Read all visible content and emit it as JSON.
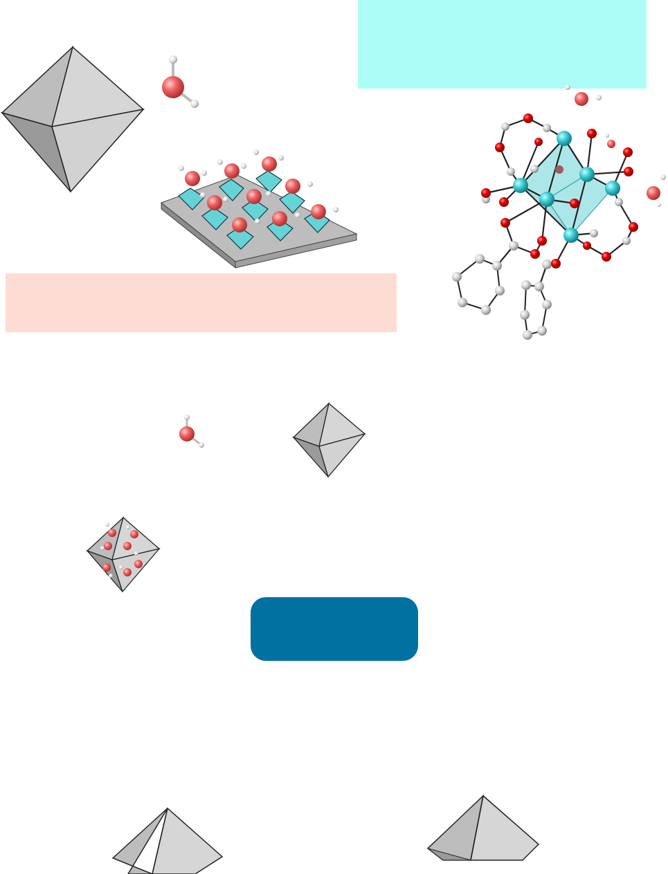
{
  "colors": {
    "cyan_panel": "#acfdf8",
    "peach_panel": "#fddcd3",
    "blue_button": "#0071a1",
    "polyhedron_light": "#d6d6d6",
    "polyhedron_mid": "#bdbdbd",
    "polyhedron_dark": "#9a9a9a",
    "oxygen_water": "#f06464",
    "oxygen_cluster": "#e00000",
    "hydrogen": "#e6e6e6",
    "carbon": "#cfcfcf",
    "metal": "#38cbd4",
    "metal_polyhedron": "#66d3d6",
    "surface": "#a9a9a9"
  },
  "icons": [
    "octahedron-icon",
    "water-molecule-icon",
    "metal-cluster-icon",
    "hydrated-surface-icon",
    "hydrated-octahedron-icon"
  ]
}
